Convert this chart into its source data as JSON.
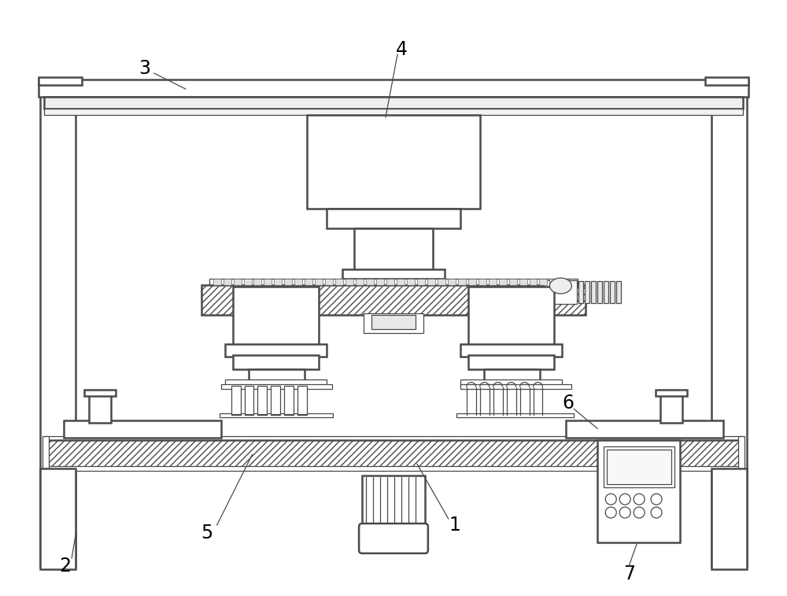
{
  "bg_color": "#ffffff",
  "line_color": "#4a4a4a",
  "lw_main": 1.8,
  "lw_thin": 0.9,
  "label_fontsize": 17
}
